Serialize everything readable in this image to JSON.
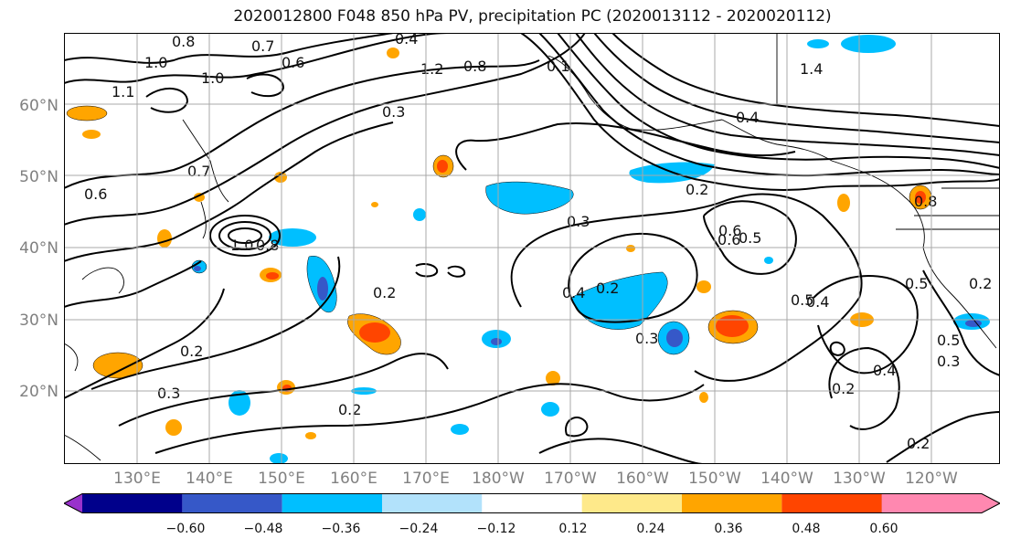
{
  "title": "2020012800 F048 850 hPa PV, precipitation PC (2020013112 - 2020020112)",
  "lat_labels": [
    "60°N",
    "50°N",
    "40°N",
    "30°N",
    "20°N"
  ],
  "lon_labels": [
    "130°E",
    "140°E",
    "150°E",
    "160°E",
    "170°E",
    "180°W",
    "170°W",
    "160°W",
    "150°W",
    "140°W",
    "130°W",
    "120°W"
  ],
  "contour_labels": [
    "0.8",
    "0.7",
    "0.4",
    "1.0",
    "0.6",
    "1.2",
    "0.8",
    "0.1",
    "1.4",
    "1.0",
    "0.3",
    "1.1",
    "0.7",
    "0.6",
    "0.4",
    "0.2",
    "1.0",
    "0.8",
    "0.6",
    "0.3",
    "0.2",
    "0.6",
    "0.5",
    "0.4",
    "0.2",
    "0.5",
    "0.4",
    "0.8",
    "0.2",
    "0.5",
    "0.3",
    "0.2",
    "0.3",
    "0.2",
    "0.5",
    "0.3",
    "0.2",
    "0.4",
    "0.2"
  ],
  "colorbar": {
    "ticks": [
      "−0.60",
      "−0.48",
      "−0.36",
      "−0.24",
      "−0.12",
      "0.12",
      "0.24",
      "0.36",
      "0.48",
      "0.60"
    ],
    "colors": [
      "#9932cc",
      "#00008b",
      "#3658c8",
      "#00bfff",
      "#b2e2fb",
      "#ffffff",
      "#fee98a",
      "#ffa500",
      "#ff4500",
      "#b22222",
      "#ff88b0"
    ]
  },
  "colors": {
    "contour": "#000000",
    "grid": "#a9a9a9",
    "coast": "#000000"
  }
}
